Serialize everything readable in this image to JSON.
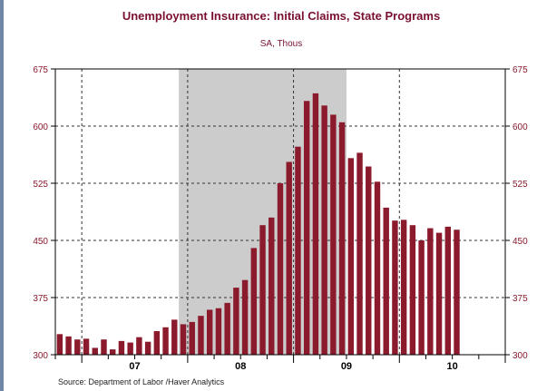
{
  "chart_data": {
    "type": "bar",
    "title": "Unemployment Insurance: Initial Claims, State Programs",
    "subtitle": "SA, Thous",
    "source": "Source:  Department of Labor /Haver Analytics",
    "xlabel": "",
    "ylabel": "",
    "x_axis_labels": [
      "07",
      "08",
      "09",
      "10"
    ],
    "y_ticks": [
      300,
      375,
      450,
      525,
      600,
      675
    ],
    "y_tick_labels": [
      "300",
      "375",
      "450",
      "525",
      "600",
      "675"
    ],
    "ylim": [
      300,
      675
    ],
    "x_range": [
      "2006-10",
      "2010-12"
    ],
    "grid": true,
    "recession_shading": {
      "start": "2007-12",
      "end": "2009-06",
      "color": "#cccccc"
    },
    "bar_color": "#8b1a2c",
    "title_color": "#7a1030",
    "series": [
      {
        "x": [
          "2006-10",
          "2006-11",
          "2006-12",
          "2007-01",
          "2007-02",
          "2007-03",
          "2007-04",
          "2007-05",
          "2007-06",
          "2007-07",
          "2007-08",
          "2007-09",
          "2007-10",
          "2007-11",
          "2007-12",
          "2008-01",
          "2008-02",
          "2008-03",
          "2008-04",
          "2008-05",
          "2008-06",
          "2008-07",
          "2008-08",
          "2008-09",
          "2008-10",
          "2008-11",
          "2008-12",
          "2009-01",
          "2009-02",
          "2009-03",
          "2009-04",
          "2009-05",
          "2009-06",
          "2009-07",
          "2009-08",
          "2009-09",
          "2009-10",
          "2009-11",
          "2009-12",
          "2010-01",
          "2010-02",
          "2010-03",
          "2010-04",
          "2010-05",
          "2010-06",
          "2010-07"
        ],
        "values": [
          327,
          324,
          320,
          321,
          309,
          320,
          307,
          318,
          316,
          323,
          317,
          331,
          336,
          346,
          340,
          343,
          351,
          359,
          361,
          368,
          388,
          398,
          440,
          470,
          480,
          525,
          553,
          573,
          633,
          643,
          627,
          615,
          605,
          558,
          565,
          547,
          527,
          493,
          476,
          477,
          470,
          450,
          466,
          460,
          468,
          464
        ]
      }
    ]
  }
}
